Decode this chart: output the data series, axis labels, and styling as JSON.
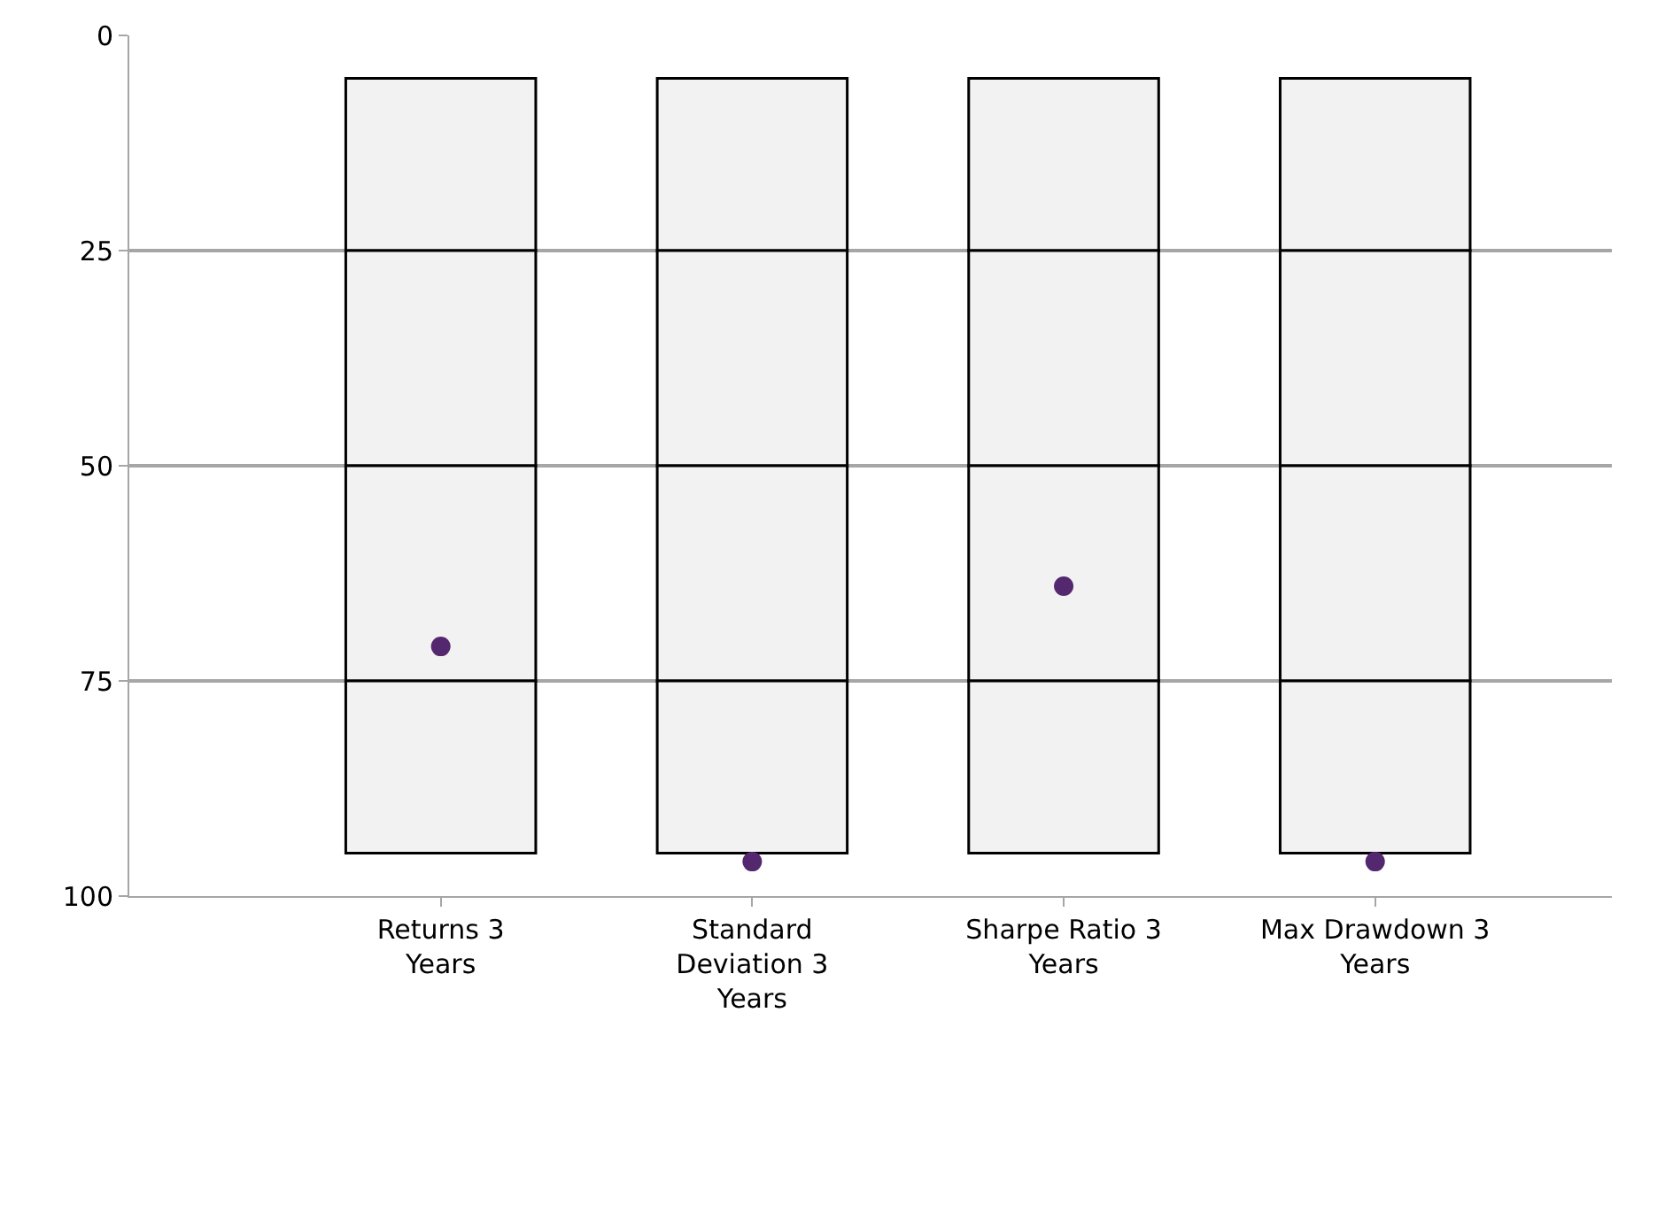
{
  "chart_data": {
    "type": "bar",
    "categories": [
      "Returns 3 Years",
      "Standard Deviation 3 Years",
      "Sharpe Ratio 3 Years",
      "Max Drawdown 3 Years"
    ],
    "series": [
      {
        "color": "#f2f2f2",
        "base": [
          5,
          5,
          5,
          5
        ],
        "values": [
          20,
          20,
          20,
          20
        ]
      },
      {
        "color": "#f2f2f2",
        "base": [
          25,
          25,
          25,
          25
        ],
        "values": [
          25,
          25,
          25,
          25
        ]
      },
      {
        "color": "#f2f2f2",
        "base": [
          50,
          50,
          50,
          50
        ],
        "values": [
          25,
          25,
          25,
          25
        ]
      },
      {
        "color": "#f2f2f2",
        "base": [
          75,
          75,
          75,
          75
        ],
        "values": [
          20,
          20,
          20,
          20
        ]
      },
      {
        "type": "scatter",
        "color": "#54286e",
        "marker": "circle",
        "values": [
          71,
          96,
          64,
          96
        ]
      }
    ],
    "ylim": [
      100,
      0
    ],
    "yticks": [
      0,
      25,
      50,
      75,
      100
    ],
    "grid": "y"
  }
}
